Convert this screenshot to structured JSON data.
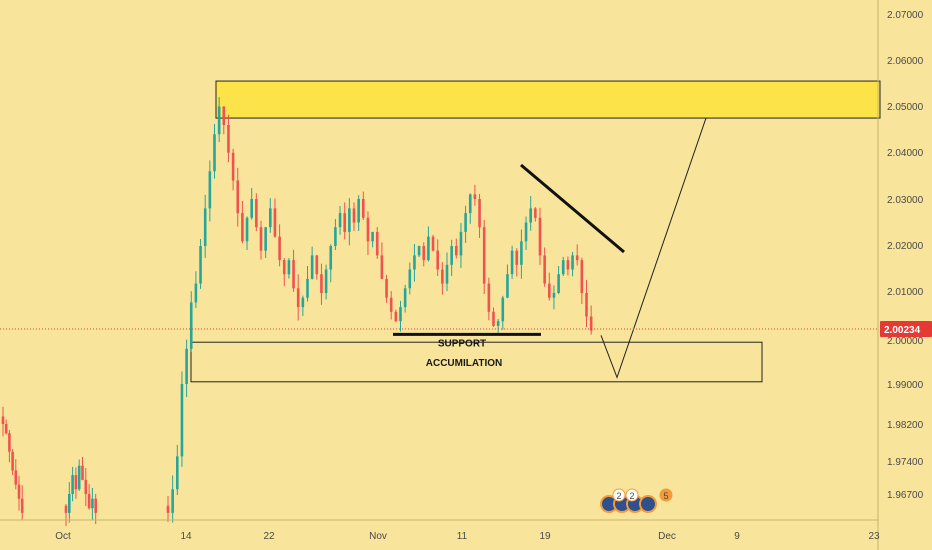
{
  "colors": {
    "background": "#f9e49b",
    "up": "#26a69a",
    "down": "#ef5350",
    "price_line": "#e53935",
    "price_label_bg": "#e53935",
    "resistance_zone": "#fde34a",
    "axis_text": "#4a4a4a",
    "drawing": "#111111"
  },
  "chart_data": {
    "type": "candlestick",
    "x_tick_labels": [
      "Oct",
      "14",
      "22",
      "Nov",
      "11",
      "19",
      "Dec",
      "9",
      "23"
    ],
    "y_tick_labels": [
      "2.07000",
      "2.06000",
      "2.05000",
      "2.04000",
      "2.03000",
      "2.02000",
      "2.01000",
      "2.00000",
      "1.99000",
      "1.98200",
      "1.97400",
      "1.96700"
    ],
    "y_range": [
      1.962,
      2.075
    ],
    "last_price": 2.00234,
    "last_price_label": "2.00234",
    "resistance_zone": {
      "low": 2.0475,
      "high": 2.0555
    },
    "accumulation_zone": {
      "low": 1.9905,
      "high": 1.9995
    },
    "support_level": 2.0012,
    "annotations": {
      "support": "SUPPORT",
      "accumulation": "ACCUMILATION"
    },
    "series": [
      {
        "name": "early",
        "closes": [
          1.982,
          1.98,
          1.976,
          1.972,
          1.969,
          1.966,
          1.963
        ]
      },
      {
        "name": "mid-october",
        "closes": [
          1.963,
          1.967,
          1.971,
          1.968,
          1.973,
          1.97,
          1.967,
          1.964,
          1.966,
          1.963
        ]
      },
      {
        "name": "main",
        "closes": [
          1.963,
          1.968,
          1.975,
          1.99,
          1.998,
          2.008,
          2.012,
          2.02,
          2.028,
          2.036,
          2.044,
          2.05,
          2.046,
          2.04,
          2.034,
          2.027,
          2.021,
          2.026,
          2.03,
          2.024,
          2.019,
          2.024,
          2.028,
          2.022,
          2.017,
          2.014,
          2.017,
          2.011,
          2.007,
          2.009,
          2.013,
          2.018,
          2.014,
          2.01,
          2.015,
          2.02,
          2.024,
          2.027,
          2.023,
          2.028,
          2.025,
          2.03,
          2.026,
          2.021,
          2.023,
          2.018,
          2.013,
          2.009,
          2.006,
          2.004,
          2.007,
          2.011,
          2.015,
          2.018,
          2.02,
          2.017,
          2.022,
          2.019,
          2.015,
          2.012,
          2.016,
          2.02,
          2.018,
          2.023,
          2.027,
          2.031,
          2.03,
          2.024,
          2.012,
          2.006,
          2.003,
          2.004,
          2.009,
          2.014,
          2.019,
          2.016,
          2.021,
          2.025,
          2.028,
          2.026,
          2.018,
          2.012,
          2.009,
          2.01,
          2.014,
          2.017,
          2.015,
          2.018,
          2.017,
          2.01,
          2.005,
          2.002
        ]
      }
    ],
    "forecast_path": [
      [
        2.0023,
        2.001
      ],
      [
        1.9915,
        2.0475
      ]
    ]
  },
  "badges": {
    "labels": [
      "2",
      "2",
      "5"
    ]
  }
}
